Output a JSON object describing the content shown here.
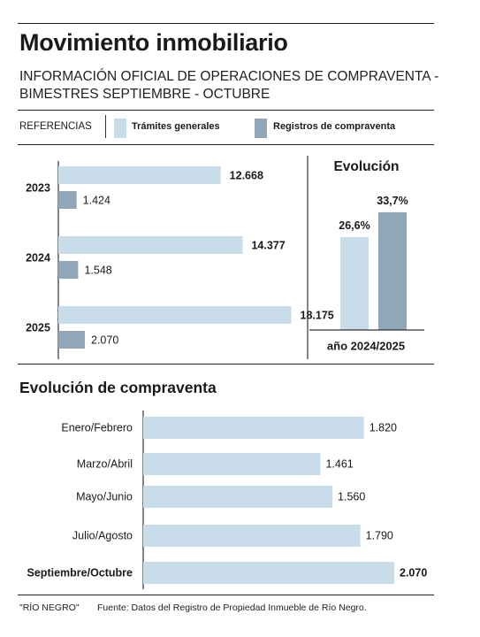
{
  "header": {
    "title": "Movimiento inmobiliario",
    "subtitle": "INFORMACIÓN OFICIAL DE OPERACIONES DE COMPRAVENTA - BIMESTRES SEPTIEMBRE - OCTUBRE"
  },
  "legend": {
    "label": "REFERENCIAS",
    "items": [
      {
        "label": "Trámites generales",
        "color": "#c9dce9"
      },
      {
        "label": "Registros de compraventa",
        "color": "#8fa7b6"
      }
    ]
  },
  "colors": {
    "light": "#c9dce9",
    "dark": "#8fa7b6",
    "axis": "#333333"
  },
  "evolution_title": "Evolución",
  "section2_title": "Evolución de compraventa",
  "footer": {
    "credit": "\"RÍO NEGRO\"",
    "source": "Fuente: Datos del Registro de Propiedad Inmueble de Río Negro."
  },
  "chart_data": [
    {
      "type": "bar",
      "orientation": "horizontal",
      "categories": [
        "2023",
        "2024",
        "2025"
      ],
      "series": [
        {
          "name": "Trámites generales",
          "values": [
            12668,
            14377,
            18175
          ],
          "labels": [
            "12.668",
            "14.377",
            "18.175"
          ]
        },
        {
          "name": "Registros de compraventa",
          "values": [
            1424,
            1548,
            2070
          ],
          "labels": [
            "1.424",
            "1.548",
            "2.070"
          ]
        }
      ],
      "xlim": [
        0,
        20000
      ]
    },
    {
      "type": "bar",
      "title": "Evolución",
      "categories": [
        "año 2024/2025"
      ],
      "series": [
        {
          "name": "Trámites generales",
          "values": [
            26.6
          ],
          "labels": [
            "26,6%"
          ]
        },
        {
          "name": "Registros de compraventa",
          "values": [
            33.7
          ],
          "labels": [
            "33,7%"
          ]
        }
      ],
      "ylim": [
        0,
        40
      ]
    },
    {
      "type": "bar",
      "orientation": "horizontal",
      "title": "Evolución de compraventa",
      "categories": [
        "Enero/Febrero",
        "Marzo/Abril",
        "Mayo/Junio",
        "Julio/Agosto",
        "Septiembre/Octubre"
      ],
      "values": [
        1820,
        1461,
        1560,
        1790,
        2070
      ],
      "labels": [
        "1.820",
        "1.461",
        "1.560",
        "1.790",
        "2.070"
      ],
      "highlight": "Septiembre/Octubre",
      "xlim": [
        0,
        2300
      ]
    }
  ]
}
